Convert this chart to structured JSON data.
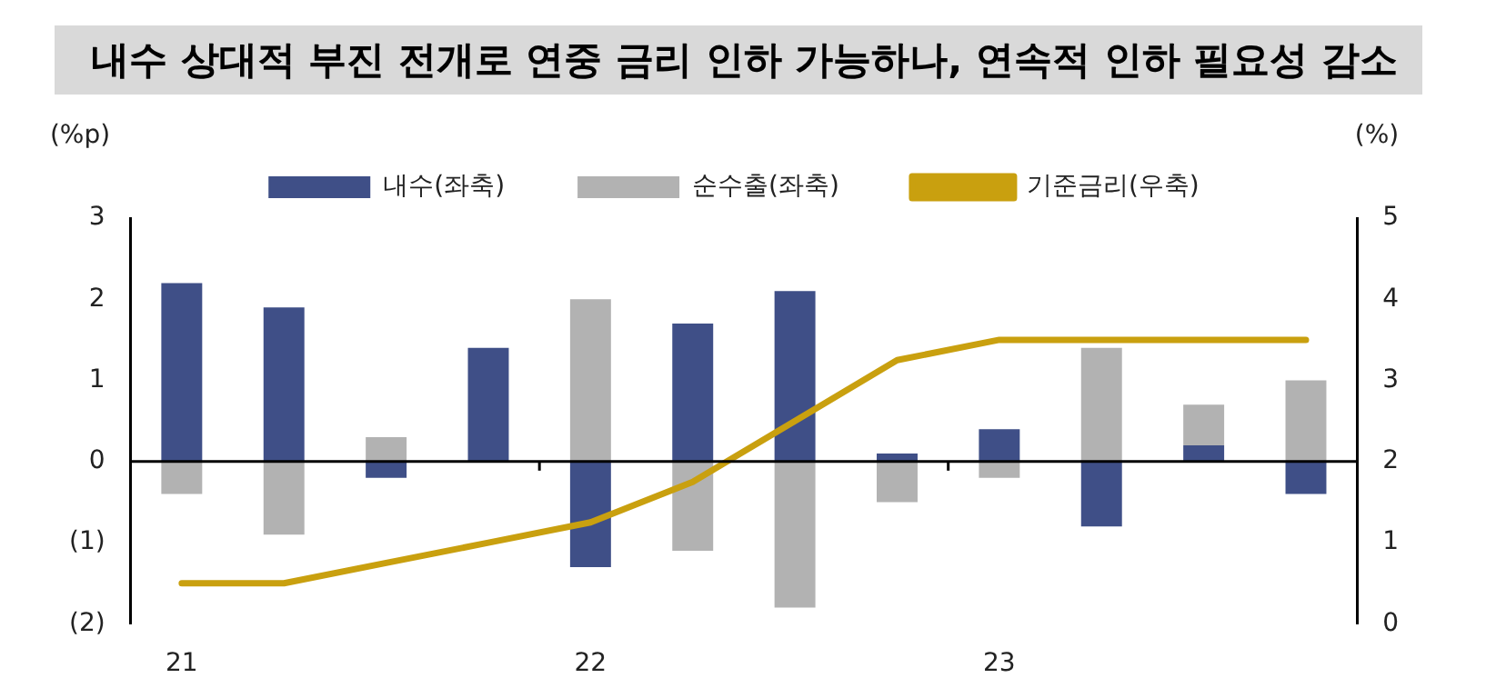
{
  "chart_data": {
    "type": "bar",
    "title": "내수 상대적 부진 전개로 연중 금리 인하 가능하나, 연속적 인하 필요성 감소",
    "ylabel": "(%p)",
    "y2label": "(%)",
    "categories": [
      "21",
      null,
      null,
      null,
      "22",
      null,
      null,
      null,
      "23",
      null,
      null,
      null
    ],
    "stacked": true,
    "series": [
      {
        "name": "내수(좌축)",
        "color": "#3f4f87",
        "values": [
          2.2,
          1.9,
          -0.2,
          1.4,
          -1.3,
          1.7,
          2.1,
          0.1,
          0.4,
          -0.8,
          0.2,
          -0.4
        ]
      },
      {
        "name": "순수출(좌축)",
        "color": "#b2b2b2",
        "values": [
          -0.4,
          -0.9,
          0.3,
          null,
          2.0,
          -1.1,
          -1.8,
          -0.5,
          -0.2,
          1.4,
          0.5,
          1.0
        ]
      },
      {
        "name": "기준금리(우축)",
        "type": "line",
        "axis": "y2",
        "color": "#c9a00f",
        "values": [
          0.5,
          0.5,
          0.75,
          1.0,
          1.25,
          1.75,
          2.5,
          3.25,
          3.5,
          3.5,
          3.5,
          3.5
        ]
      }
    ],
    "ylim": [
      -2,
      3
    ],
    "yticks": [
      {
        "value": -2,
        "label": "(2)"
      },
      {
        "value": -1,
        "label": "(1)"
      },
      0,
      1,
      2,
      3
    ],
    "y2lim": [
      0,
      5
    ],
    "y2ticks": [
      0,
      1,
      2,
      3,
      4,
      5
    ],
    "ref_lines": [
      {
        "axis": "y",
        "value": 0,
        "color": "#000000"
      }
    ],
    "grid": false,
    "legend": "top"
  }
}
